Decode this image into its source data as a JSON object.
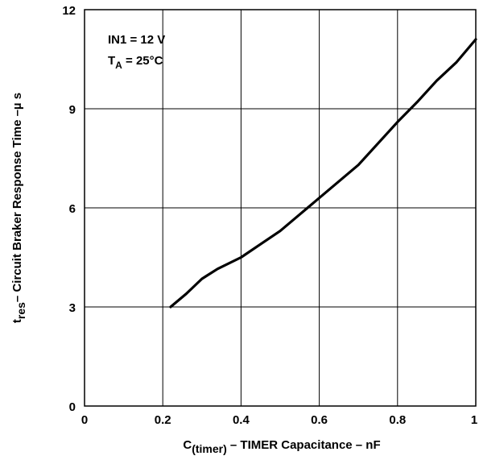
{
  "chart_data": {
    "type": "line",
    "xlabel": {
      "main": "C",
      "sub": "(timer)",
      "rest": " – TIMER Capacitance – nF"
    },
    "ylabel": {
      "main": "t",
      "sub": "res",
      "rest": "– Circuit Braker Response Time –µ s"
    },
    "xlim": [
      0,
      1
    ],
    "ylim": [
      0,
      12
    ],
    "x_ticks": [
      "0",
      "0.2",
      "0.4",
      "0.6",
      "0.8",
      "1"
    ],
    "y_ticks": [
      "0",
      "3",
      "6",
      "9",
      "12"
    ],
    "grid": true,
    "annotations": {
      "line1": "IN1 = 12 V",
      "line2_main": "T",
      "line2_sub": "A",
      "line2_rest": " = 25°C"
    },
    "series": [
      {
        "x": [
          0.22,
          0.26,
          0.3,
          0.34,
          0.4,
          0.45,
          0.5,
          0.55,
          0.6,
          0.65,
          0.7,
          0.75,
          0.8,
          0.85,
          0.9,
          0.95,
          1.0
        ],
        "y": [
          3.0,
          3.4,
          3.85,
          4.15,
          4.5,
          4.9,
          5.3,
          5.8,
          6.3,
          6.8,
          7.3,
          7.95,
          8.6,
          9.2,
          9.85,
          10.4,
          11.1
        ]
      }
    ]
  }
}
